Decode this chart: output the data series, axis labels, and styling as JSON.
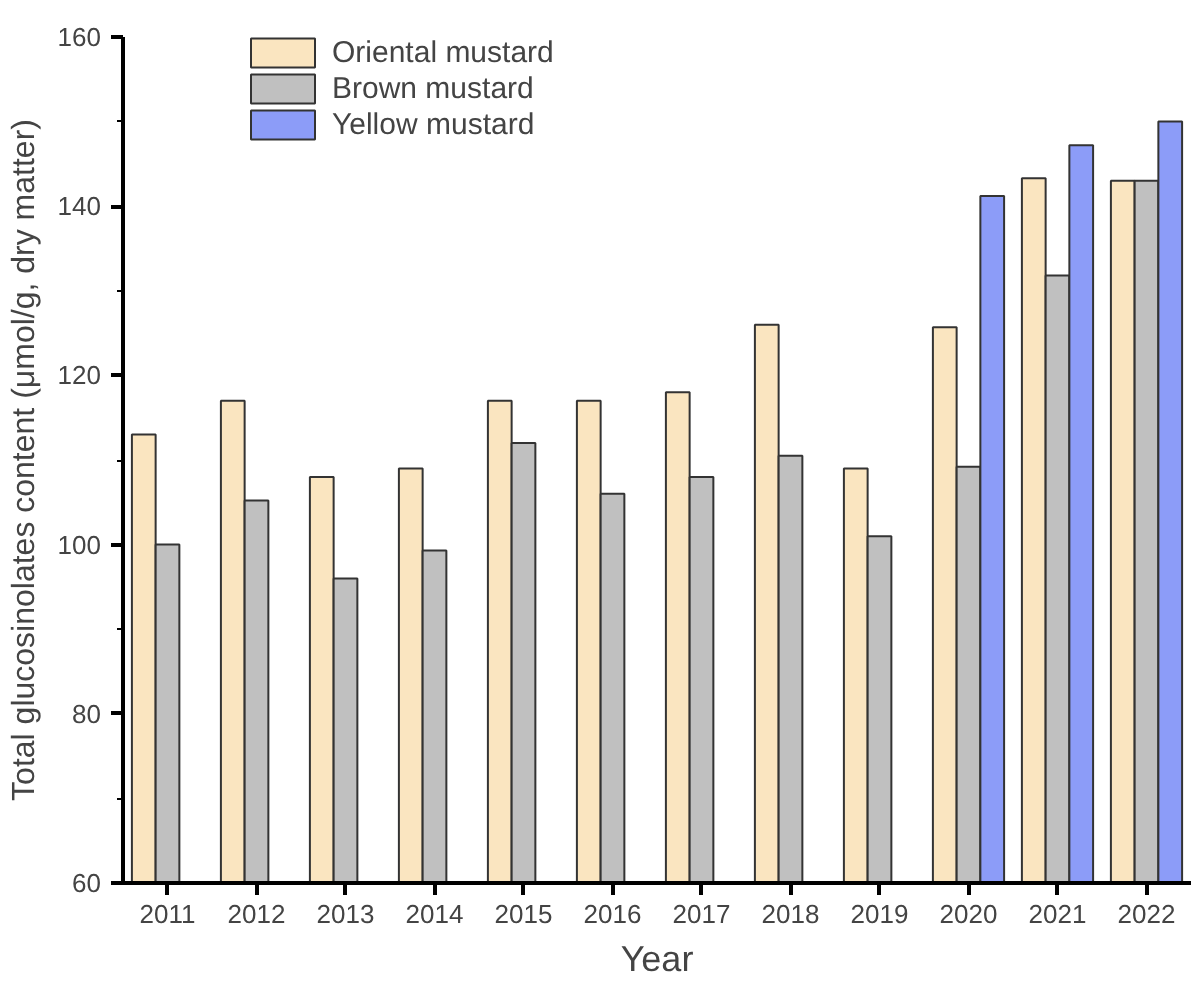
{
  "chart_data": {
    "type": "bar",
    "xlabel": "Year",
    "ylabel": "Total glucosinolates content (μmol/g, dry matter)",
    "categories": [
      "2011",
      "2012",
      "2013",
      "2014",
      "2015",
      "2016",
      "2017",
      "2018",
      "2019",
      "2020",
      "2021",
      "2022"
    ],
    "series": [
      {
        "name": "Oriental mustard",
        "color": "#fae5c0",
        "values": [
          113,
          117,
          108,
          109,
          117,
          117,
          118,
          126,
          109,
          125.7,
          143.3,
          143
        ]
      },
      {
        "name": "Brown mustard",
        "color": "#c0c0c0",
        "values": [
          100,
          105.2,
          96,
          99.3,
          112,
          106,
          108,
          110.5,
          101,
          109.2,
          131.8,
          143
        ]
      },
      {
        "name": "Yellow mustard",
        "color": "#8c9cf8",
        "values": [
          null,
          null,
          null,
          null,
          null,
          null,
          null,
          null,
          null,
          141.2,
          147.2,
          150
        ]
      }
    ],
    "ylim": [
      60,
      160
    ],
    "yticks": [
      60,
      {
        "value": 70,
        "label": null
      },
      80,
      {
        "value": 90,
        "label": null
      },
      100,
      {
        "value": 110,
        "label": null
      },
      120,
      {
        "value": 130,
        "label": null
      },
      140,
      {
        "value": 150,
        "label": null
      },
      160
    ],
    "grid": false,
    "legend": "top left"
  }
}
